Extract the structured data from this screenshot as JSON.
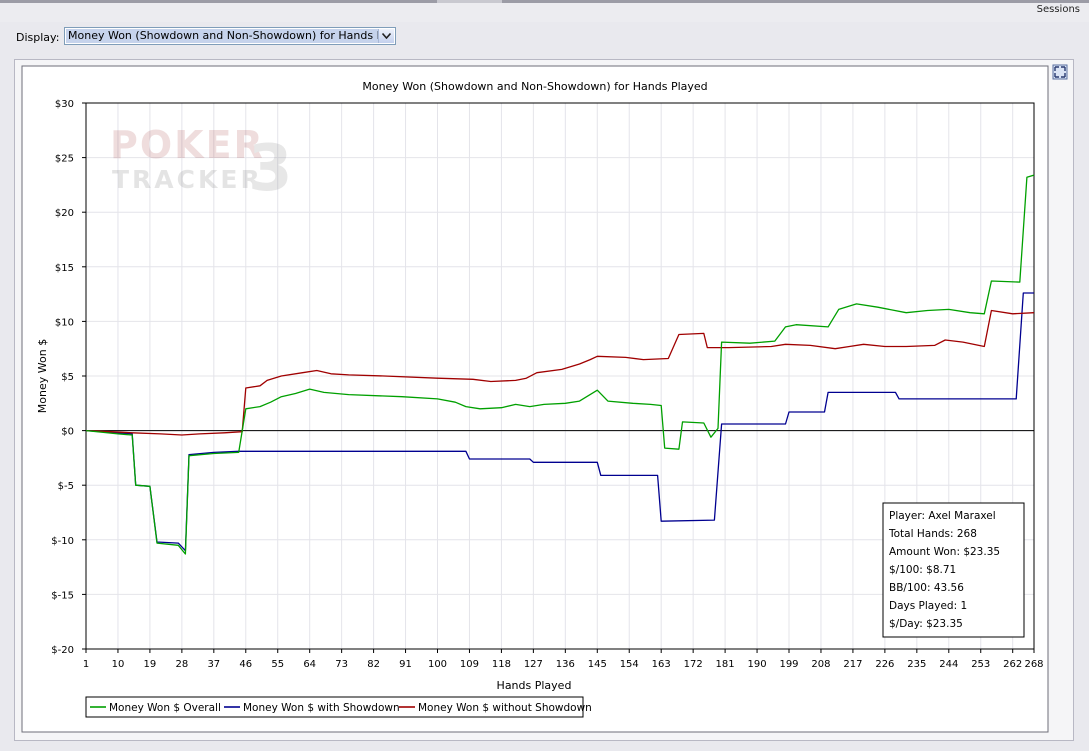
{
  "window": {
    "sessions_label": "Sessions"
  },
  "display": {
    "label": "Display:",
    "selected": "Money Won (Showdown and Non-Showdown) for Hands Played"
  },
  "icons": {
    "dropdown": "chevron-down-icon",
    "expand": "expand-icon"
  },
  "watermark": {
    "line1": "POKER",
    "line2": "TRACKER",
    "mark": "3"
  },
  "colors": {
    "overall": "#00a000",
    "showdown": "#000090",
    "non_showdown": "#a00000",
    "zero_line": "#000000"
  },
  "info_box": [
    "Player: Axel Maraxel",
    "Total Hands: 268",
    "Amount Won: $23.35",
    "$/100: $8.71",
    "BB/100: 43.56",
    "Days Played: 1",
    "$/Day: $23.35"
  ],
  "chart_data": {
    "type": "line",
    "title": "Money Won (Showdown and Non-Showdown) for Hands Played",
    "xlabel": "Hands Played",
    "ylabel": "Money Won $",
    "xlim": [
      1,
      268
    ],
    "ylim": [
      -20,
      30
    ],
    "x_ticks": [
      1,
      10,
      19,
      28,
      37,
      46,
      55,
      64,
      73,
      82,
      91,
      100,
      109,
      118,
      127,
      136,
      145,
      154,
      163,
      172,
      181,
      190,
      199,
      208,
      217,
      226,
      235,
      244,
      253,
      262,
      268
    ],
    "y_ticks": [
      -20,
      -15,
      -10,
      -5,
      0,
      5,
      10,
      15,
      20,
      25,
      30
    ],
    "y_tick_labels": [
      "$-20",
      "$-15",
      "$-10",
      "$-5",
      "$0",
      "$5",
      "$10",
      "$15",
      "$20",
      "$25",
      "$30"
    ],
    "grid": true,
    "legend_position": "bottom-left",
    "series": [
      {
        "name": "Money Won $ Overall",
        "color": "#00a000",
        "points": [
          [
            1,
            0
          ],
          [
            10,
            -0.3
          ],
          [
            14,
            -0.4
          ],
          [
            15,
            -5
          ],
          [
            19,
            -5.1
          ],
          [
            21,
            -10.3
          ],
          [
            27,
            -10.5
          ],
          [
            29,
            -11.3
          ],
          [
            30,
            -2.3
          ],
          [
            37,
            -2.1
          ],
          [
            44,
            -2.0
          ],
          [
            46,
            2.0
          ],
          [
            50,
            2.2
          ],
          [
            53,
            2.6
          ],
          [
            56,
            3.1
          ],
          [
            60,
            3.4
          ],
          [
            64,
            3.8
          ],
          [
            68,
            3.5
          ],
          [
            75,
            3.3
          ],
          [
            90,
            3.1
          ],
          [
            100,
            2.9
          ],
          [
            105,
            2.6
          ],
          [
            108,
            2.2
          ],
          [
            112,
            2.0
          ],
          [
            118,
            2.1
          ],
          [
            122,
            2.4
          ],
          [
            126,
            2.2
          ],
          [
            130,
            2.4
          ],
          [
            136,
            2.5
          ],
          [
            140,
            2.7
          ],
          [
            145,
            3.7
          ],
          [
            148,
            2.7
          ],
          [
            155,
            2.5
          ],
          [
            160,
            2.4
          ],
          [
            163,
            2.3
          ],
          [
            164,
            -1.6
          ],
          [
            168,
            -1.7
          ],
          [
            169,
            0.8
          ],
          [
            175,
            0.7
          ],
          [
            177,
            -0.6
          ],
          [
            179,
            0.2
          ],
          [
            180,
            8.1
          ],
          [
            188,
            8.0
          ],
          [
            195,
            8.2
          ],
          [
            198,
            9.5
          ],
          [
            201,
            9.7
          ],
          [
            210,
            9.5
          ],
          [
            213,
            11.1
          ],
          [
            218,
            11.6
          ],
          [
            224,
            11.3
          ],
          [
            232,
            10.8
          ],
          [
            238,
            11.0
          ],
          [
            244,
            11.1
          ],
          [
            250,
            10.8
          ],
          [
            254,
            10.7
          ],
          [
            256,
            13.7
          ],
          [
            264,
            13.6
          ],
          [
            266,
            23.2
          ],
          [
            268,
            23.4
          ]
        ]
      },
      {
        "name": "Money Won $ with Showdown",
        "color": "#000090",
        "points": [
          [
            1,
            0
          ],
          [
            10,
            -0.2
          ],
          [
            14,
            -0.3
          ],
          [
            15,
            -5.0
          ],
          [
            19,
            -5.1
          ],
          [
            21,
            -10.2
          ],
          [
            27,
            -10.3
          ],
          [
            29,
            -11.0
          ],
          [
            30,
            -2.2
          ],
          [
            37,
            -2.0
          ],
          [
            44,
            -1.9
          ],
          [
            46,
            -1.9
          ],
          [
            100,
            -1.9
          ],
          [
            108,
            -1.9
          ],
          [
            109,
            -2.6
          ],
          [
            126,
            -2.6
          ],
          [
            127,
            -2.9
          ],
          [
            145,
            -2.9
          ],
          [
            146,
            -4.1
          ],
          [
            162,
            -4.1
          ],
          [
            163,
            -8.3
          ],
          [
            178,
            -8.2
          ],
          [
            180,
            0.6
          ],
          [
            198,
            0.6
          ],
          [
            199,
            1.7
          ],
          [
            209,
            1.7
          ],
          [
            210,
            3.5
          ],
          [
            229,
            3.5
          ],
          [
            230,
            2.9
          ],
          [
            263,
            2.9
          ],
          [
            265,
            12.6
          ],
          [
            268,
            12.6
          ]
        ]
      },
      {
        "name": "Money Won $ without Showdown",
        "color": "#a00000",
        "points": [
          [
            1,
            0
          ],
          [
            8,
            -0.1
          ],
          [
            14,
            -0.2
          ],
          [
            22,
            -0.3
          ],
          [
            28,
            -0.4
          ],
          [
            33,
            -0.3
          ],
          [
            40,
            -0.2
          ],
          [
            45,
            -0.1
          ],
          [
            46,
            3.9
          ],
          [
            50,
            4.1
          ],
          [
            52,
            4.6
          ],
          [
            56,
            5.0
          ],
          [
            62,
            5.3
          ],
          [
            66,
            5.5
          ],
          [
            70,
            5.2
          ],
          [
            75,
            5.1
          ],
          [
            85,
            5.0
          ],
          [
            100,
            4.8
          ],
          [
            110,
            4.7
          ],
          [
            115,
            4.5
          ],
          [
            122,
            4.6
          ],
          [
            125,
            4.8
          ],
          [
            128,
            5.3
          ],
          [
            135,
            5.6
          ],
          [
            140,
            6.1
          ],
          [
            143,
            6.5
          ],
          [
            145,
            6.8
          ],
          [
            153,
            6.7
          ],
          [
            158,
            6.5
          ],
          [
            165,
            6.6
          ],
          [
            168,
            8.8
          ],
          [
            175,
            8.9
          ],
          [
            176,
            7.6
          ],
          [
            180,
            7.6
          ],
          [
            182,
            7.6
          ],
          [
            194,
            7.7
          ],
          [
            198,
            7.9
          ],
          [
            205,
            7.8
          ],
          [
            212,
            7.5
          ],
          [
            216,
            7.7
          ],
          [
            220,
            7.9
          ],
          [
            226,
            7.7
          ],
          [
            232,
            7.7
          ],
          [
            240,
            7.8
          ],
          [
            243,
            8.3
          ],
          [
            248,
            8.1
          ],
          [
            254,
            7.7
          ],
          [
            256,
            11.0
          ],
          [
            262,
            10.7
          ],
          [
            268,
            10.8
          ]
        ]
      }
    ]
  }
}
